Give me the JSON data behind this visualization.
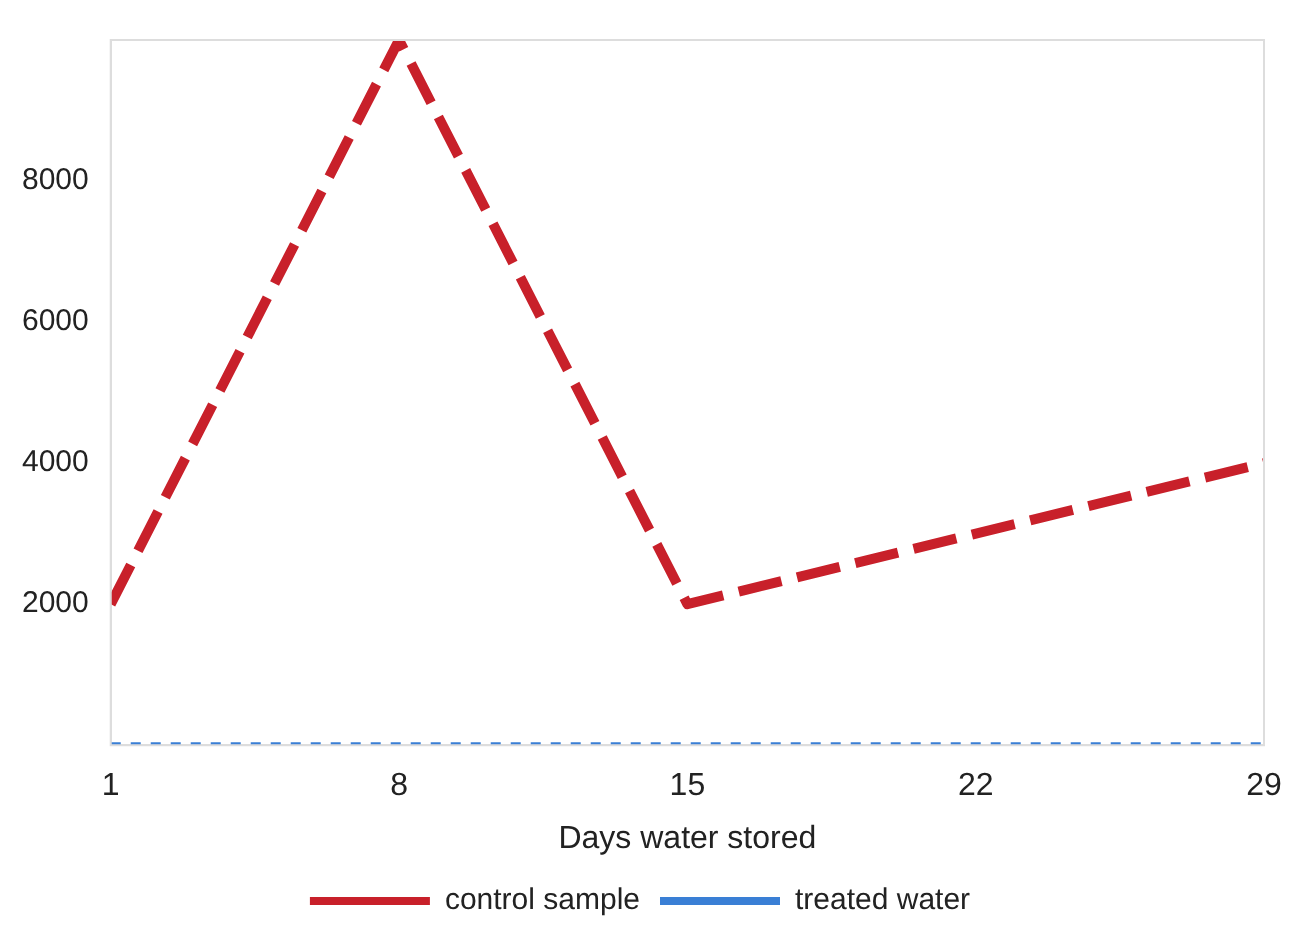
{
  "chart_data": {
    "type": "line",
    "xlabel": "Days water stored",
    "x": [
      1,
      8,
      15,
      29
    ],
    "series": [
      {
        "name": "control sample",
        "color": "#c8202a",
        "values": [
          2000,
          10000,
          2000,
          4000
        ],
        "line_style": "dashed"
      },
      {
        "name": "treated water",
        "color": "#3a7fd5",
        "x": [
          1,
          29
        ],
        "values": [
          0,
          0
        ],
        "line_style": "dotted"
      }
    ],
    "xlim": [
      1,
      29
    ],
    "xticks": [
      1,
      8,
      15,
      22,
      29
    ],
    "ylim": [
      0,
      10000
    ],
    "yticks": [
      2000,
      4000,
      6000,
      8000
    ],
    "grid": false,
    "legend": "bottom",
    "marker": "none"
  }
}
